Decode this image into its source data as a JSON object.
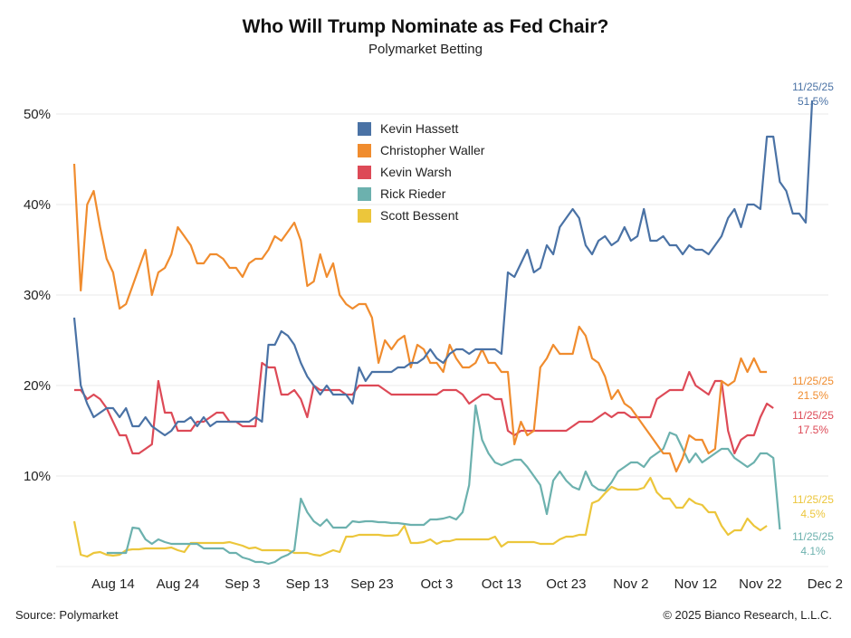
{
  "chart_data": {
    "type": "line",
    "title": "Who Will Trump Nominate as Fed Chair?",
    "subtitle": "Polymarket Betting",
    "xlabel": "",
    "ylabel": "",
    "ylim": [
      0,
      55
    ],
    "yticks": [
      10,
      20,
      30,
      40,
      50
    ],
    "ytick_labels": [
      "10%",
      "20%",
      "30%",
      "40%",
      "50%"
    ],
    "x_start_date": "Aug 8",
    "x_range_days": [
      0,
      117
    ],
    "xticks_days": [
      6,
      16,
      26,
      36,
      46,
      56,
      66,
      76,
      86,
      96,
      106,
      116
    ],
    "xtick_labels": [
      "Aug 14",
      "Aug 24",
      "Sep 3",
      "Sep 13",
      "Sep 23",
      "Oct 3",
      "Oct 13",
      "Oct 23",
      "Nov 2",
      "Nov 12",
      "Nov 22",
      "Dec 2"
    ],
    "grid": "horizontal",
    "legend_position": "top-center",
    "series": [
      {
        "name": "Kevin Hassett",
        "color": "#4a72a5",
        "end_label": [
          "11/25/25",
          "51.5%"
        ],
        "values": [
          27.5,
          20,
          18,
          16.5,
          17,
          17.5,
          17.5,
          16.5,
          17.5,
          15.5,
          15.5,
          16.5,
          15.5,
          15,
          14.5,
          15,
          16,
          16,
          16.5,
          15.5,
          16.5,
          15.5,
          16,
          16,
          16,
          16,
          16,
          16,
          16.5,
          16,
          24.5,
          24.5,
          26,
          25.5,
          24.5,
          22.5,
          21,
          20,
          19,
          20,
          19,
          19,
          19,
          18,
          22,
          20.5,
          21.5,
          21.5,
          21.5,
          21.5,
          22,
          22,
          22.5,
          22.5,
          23,
          24,
          23,
          22.5,
          23.5,
          24,
          24,
          23.5,
          24,
          24,
          24,
          24,
          23.5,
          32.5,
          32,
          33.5,
          35,
          32.5,
          33,
          35.5,
          34.5,
          37.5,
          38.5,
          39.5,
          38.5,
          35.5,
          34.5,
          36,
          36.5,
          35.5,
          36,
          37.5,
          36,
          36.5,
          39.5,
          36,
          36,
          36.5,
          35.5,
          35.5,
          34.5,
          35.5,
          35,
          35,
          34.5,
          35.5,
          36.5,
          38.5,
          39.5,
          37.5,
          40,
          40,
          39.5,
          47.5,
          47.5,
          42.5,
          41.5,
          39,
          39,
          38,
          51.5
        ]
      },
      {
        "name": "Christopher Waller",
        "color": "#f08c2e",
        "end_label": [
          "11/25/25",
          "21.5%"
        ],
        "values": [
          44.5,
          30.5,
          40,
          41.5,
          37.5,
          34,
          32.5,
          28.5,
          29,
          31,
          33,
          35,
          30,
          32.5,
          33,
          34.5,
          37.5,
          36.5,
          35.5,
          33.5,
          33.5,
          34.5,
          34.5,
          34,
          33,
          33,
          32,
          33.5,
          34,
          34,
          35,
          36.5,
          36,
          37,
          38,
          36,
          31,
          31.5,
          34.5,
          32,
          33.5,
          30,
          29,
          28.5,
          29,
          29,
          27.5,
          22.5,
          25,
          24,
          25,
          25.5,
          22,
          24.5,
          24,
          22.5,
          22.5,
          21.5,
          24.5,
          23,
          22,
          22,
          22.5,
          24,
          22.5,
          22.5,
          21.5,
          21.5,
          13.5,
          16,
          14.5,
          15,
          22,
          23,
          24.5,
          23.5,
          23.5,
          23.5,
          26.5,
          25.5,
          23,
          22.5,
          21,
          18.5,
          19.5,
          18,
          17.5,
          16.5,
          15.5,
          14.5,
          13.5,
          12.5,
          12.5,
          10.5,
          12,
          14.5,
          14,
          14,
          12.5,
          13,
          20.5,
          20,
          20.5,
          23,
          21.5,
          23,
          21.5,
          21.5
        ]
      },
      {
        "name": "Kevin Warsh",
        "color": "#dd4a57",
        "end_label": [
          "11/25/25",
          "17.5%"
        ],
        "values": [
          19.5,
          19.5,
          18.5,
          19,
          18.5,
          17.5,
          16,
          14.5,
          14.5,
          12.5,
          12.5,
          13,
          13.5,
          20.5,
          17,
          17,
          15,
          15,
          15,
          16,
          16,
          16.5,
          17,
          17,
          16,
          16,
          15.5,
          15.5,
          15.5,
          22.5,
          22,
          22,
          19,
          19,
          19.5,
          18.5,
          16.5,
          20,
          19.5,
          19.5,
          19.5,
          19.5,
          19,
          19,
          20,
          20,
          20,
          20,
          19.5,
          19,
          19,
          19,
          19,
          19,
          19,
          19,
          19,
          19.5,
          19.5,
          19.5,
          19,
          18,
          18.5,
          19,
          19,
          18.5,
          18.5,
          15,
          14.5,
          15,
          15,
          15,
          15,
          15,
          15,
          15,
          15,
          15.5,
          16,
          16,
          16,
          16.5,
          17,
          16.5,
          17,
          17,
          16.5,
          16.5,
          16.5,
          16.5,
          18.5,
          19,
          19.5,
          19.5,
          19.5,
          21.5,
          20,
          19.5,
          19,
          20.5,
          20.5,
          15,
          12.5,
          14,
          14.5,
          14.5,
          16.5,
          18,
          17.5
        ]
      },
      {
        "name": "Rick Rieder",
        "color": "#6cb1ae",
        "end_label": [
          "11/25/25",
          "4.1%"
        ],
        "values": [
          null,
          null,
          null,
          null,
          null,
          1.5,
          1.5,
          1.5,
          1.5,
          4.3,
          4.2,
          3,
          2.5,
          3,
          2.7,
          2.5,
          2.5,
          2.5,
          2.5,
          2.5,
          2,
          2,
          2,
          2,
          1.5,
          1.5,
          1,
          0.8,
          0.5,
          0.5,
          0.3,
          0.5,
          1,
          1.3,
          1.8,
          7.5,
          6,
          5,
          4.5,
          5.2,
          4.3,
          4.3,
          4.3,
          5,
          4.9,
          5,
          5,
          4.9,
          4.9,
          4.8,
          4.8,
          4.7,
          4.6,
          4.6,
          4.6,
          5.2,
          5.2,
          5.3,
          5.5,
          5.2,
          6,
          9,
          17.8,
          14,
          12.5,
          11.5,
          11.2,
          11.5,
          11.8,
          11.8,
          11,
          10,
          9,
          5.8,
          9.5,
          10.5,
          9.5,
          8.8,
          8.5,
          10.5,
          9,
          8.5,
          8.4,
          9.3,
          10.5,
          11,
          11.5,
          11.5,
          11,
          12,
          12.5,
          13,
          14.8,
          14.5,
          13,
          11.5,
          12.5,
          11.5,
          12,
          12.5,
          13,
          13,
          12,
          11.5,
          11,
          11.5,
          12.5,
          12.5,
          12,
          4.1
        ]
      },
      {
        "name": "Scott Bessent",
        "color": "#ecc63b",
        "end_label": [
          "11/25/25",
          "4.5%"
        ],
        "values": [
          5,
          1.3,
          1.1,
          1.5,
          1.6,
          1.3,
          1.2,
          1.3,
          1.8,
          1.9,
          1.9,
          2,
          2,
          2,
          2,
          2.1,
          1.8,
          1.6,
          2.6,
          2.6,
          2.6,
          2.6,
          2.6,
          2.6,
          2.7,
          2.5,
          2.3,
          2,
          2.1,
          1.8,
          1.8,
          1.8,
          1.8,
          1.8,
          1.5,
          1.5,
          1.5,
          1.3,
          1.2,
          1.5,
          1.8,
          1.6,
          3.3,
          3.3,
          3.5,
          3.5,
          3.5,
          3.5,
          3.4,
          3.4,
          3.5,
          4.5,
          2.6,
          2.6,
          2.7,
          3,
          2.5,
          2.8,
          2.8,
          3,
          3,
          3,
          3,
          3,
          3,
          3.3,
          2.2,
          2.7,
          2.7,
          2.7,
          2.7,
          2.7,
          2.5,
          2.5,
          2.5,
          3,
          3.3,
          3.3,
          3.5,
          3.5,
          7,
          7.3,
          8.1,
          8.8,
          8.5,
          8.5,
          8.5,
          8.5,
          8.7,
          9.8,
          8.2,
          7.5,
          7.5,
          6.5,
          6.5,
          7.5,
          7,
          6.8,
          6,
          6,
          4.5,
          3.5,
          4,
          4,
          5.3,
          4.5,
          4,
          4.5
        ]
      }
    ]
  },
  "footer": {
    "source": "Source: Polymarket",
    "copyright": "© 2025 Bianco Research, L.L.C."
  }
}
